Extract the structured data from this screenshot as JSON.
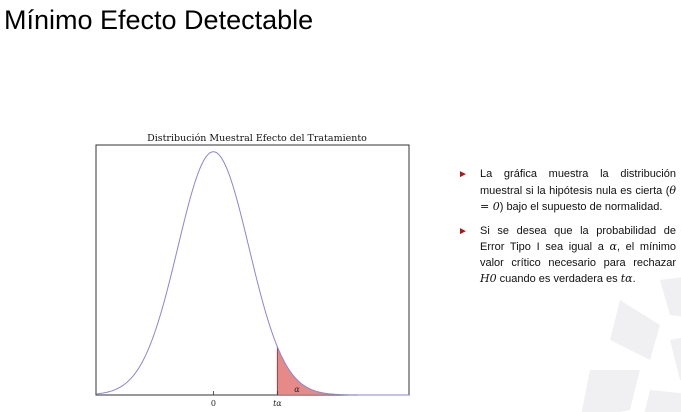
{
  "slide": {
    "title": "Mínimo Efecto Detectable"
  },
  "chart_data": {
    "type": "area",
    "title": "Distribución Muestral Efecto del Tratamiento",
    "xlabel": "",
    "ylabel": "",
    "distribution": "normal",
    "mean": 0,
    "sd": 1,
    "xlim": [
      -3.3,
      5.5
    ],
    "ylim": [
      0,
      0.41
    ],
    "critical_value": 1.8,
    "critical_value_label": "tα",
    "shaded_region": "right tail beyond tα",
    "shaded_region_label": "α",
    "x_ticks": [
      {
        "value": 0,
        "label": "0"
      },
      {
        "value": 1.8,
        "label": "tα"
      }
    ],
    "grid": false,
    "legend": "none",
    "colors": {
      "curve": "#8a86d4",
      "shade": "#e07474",
      "shade_edge": "#a83a3a",
      "frame": "#333333"
    }
  },
  "bullets": [
    {
      "text_before": "La gráfica muestra la distribución muestral si la hipótesis nula es cierta (",
      "math": "θ = 0",
      "text_after": ") bajo el supuesto de normalidad."
    },
    {
      "text_before": "Si se desea que la probabilidad de Error Tipo I sea igual a ",
      "math1": "α",
      "text_middle": ", el mínimo valor crítico necesario para rechazar ",
      "math2": "H0",
      "text_middle2": " cuando es verdadera es ",
      "math3": "tα",
      "text_after": "."
    }
  ],
  "colors": {
    "bullet": "#b01818",
    "text": "#111111"
  }
}
